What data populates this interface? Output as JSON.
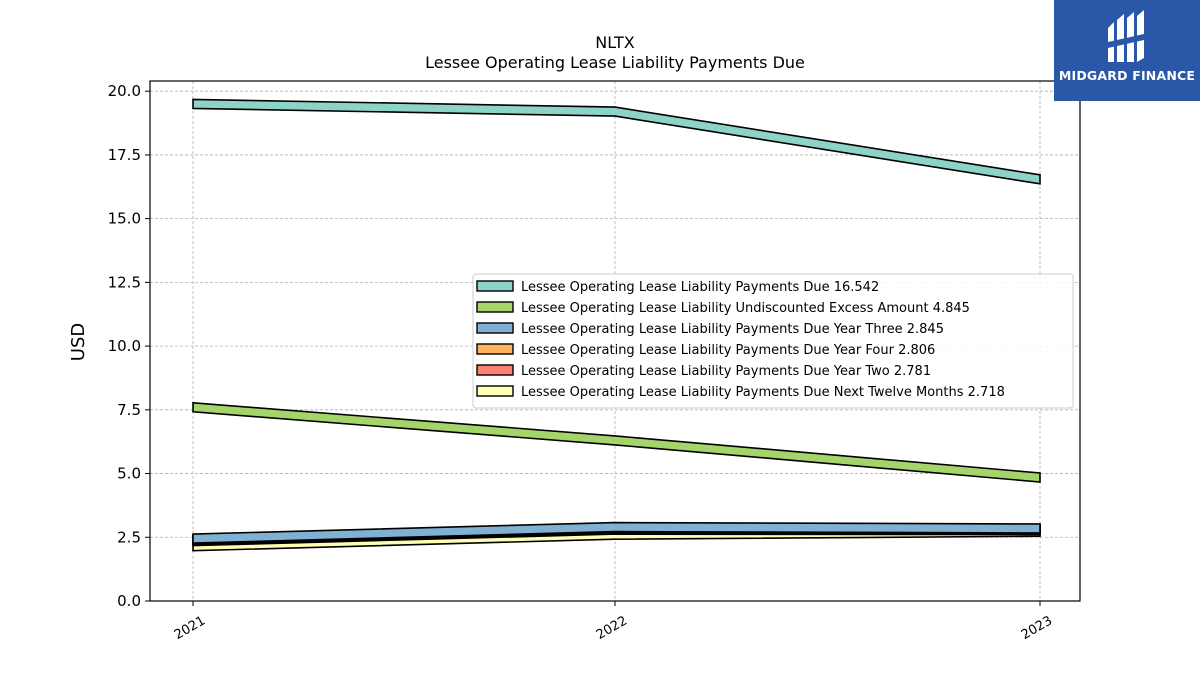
{
  "chart_data": {
    "type": "area",
    "title": "NLTX",
    "subtitle": "Lessee Operating Lease Liability Payments Due",
    "xlabel": "",
    "ylabel": "USD",
    "categories": [
      "2021",
      "2022",
      "2023"
    ],
    "ylim": [
      0,
      20.4
    ],
    "yticks": [
      "0.0",
      "2.5",
      "5.0",
      "7.5",
      "10.0",
      "12.5",
      "15.0",
      "17.5",
      "20.0"
    ],
    "grid": true,
    "legend_position": "center-right",
    "series": [
      {
        "name": "Lessee Operating Lease Liability Payments Due  16.542",
        "values": [
          19.5,
          19.2,
          16.542
        ],
        "color": "#8dd3c7"
      },
      {
        "name": "Lessee Operating Lease Liability Undiscounted Excess Amount  4.845",
        "values": [
          7.6,
          6.3,
          4.845
        ],
        "color": "#a5d46a"
      },
      {
        "name": "Lessee Operating Lease Liability Payments Due Year Three  2.845",
        "values": [
          2.45,
          2.9,
          2.845
        ],
        "color": "#80b1d3"
      },
      {
        "name": "Lessee Operating Lease Liability Payments Due Year Four  2.806",
        "values": [
          2.4,
          2.85,
          2.806
        ],
        "color": "#fdb462"
      },
      {
        "name": "Lessee Operating Lease Liability Payments Due Year Two  2.781",
        "values": [
          2.35,
          2.8,
          2.781
        ],
        "color": "#fb8072"
      },
      {
        "name": "Lessee Operating Lease Liability Payments Due Next Twelve Months  2.718",
        "values": [
          2.15,
          2.6,
          2.718
        ],
        "color": "#ffffb3"
      }
    ]
  },
  "logo": {
    "text": "MIDGARD FINANCE",
    "icon": "midgard-logo-icon",
    "background": "#2a57a8"
  }
}
